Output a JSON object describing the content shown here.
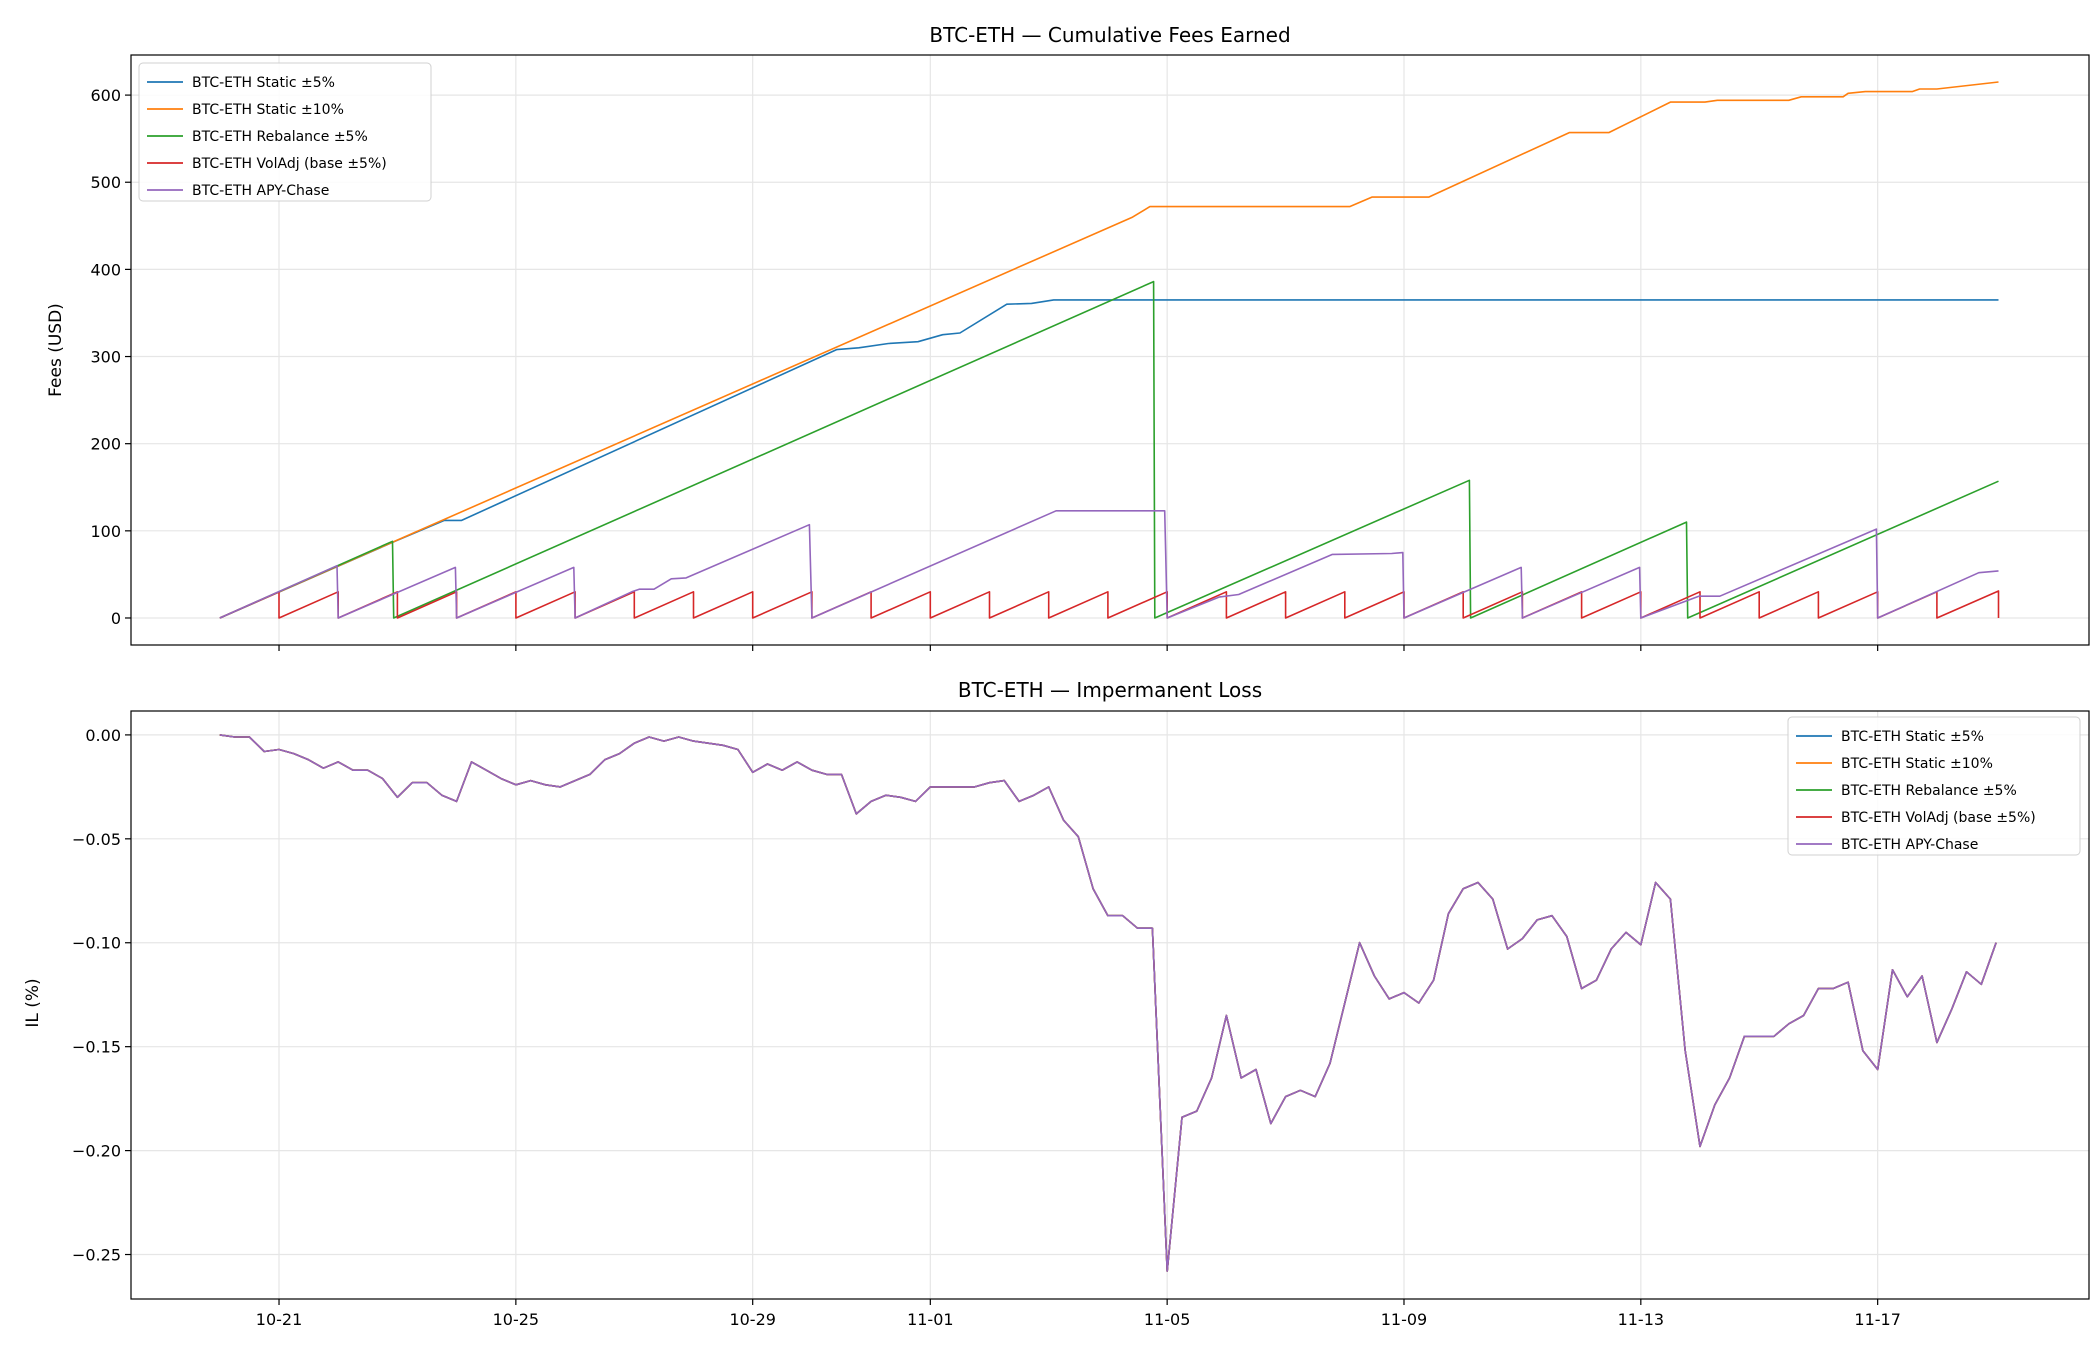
{
  "chart_data": [
    {
      "type": "line",
      "title": "BTC-ETH — Cumulative Fees Earned",
      "xlabel": "",
      "ylabel": "Fees (USD)",
      "xlim": [
        "10-18 12:00",
        "11-20 13:40"
      ],
      "ylim": [
        -31,
        646
      ],
      "xticks": [
        "10-21",
        "10-25",
        "10-29",
        "11-01",
        "11-05",
        "11-09",
        "11-13",
        "11-17"
      ],
      "xtick_labels_shown": false,
      "yticks": [
        0,
        100,
        200,
        300,
        400,
        500,
        600
      ],
      "grid": true,
      "legend": "top-left",
      "series": [
        {
          "name": "BTC-ETH Static ±5%",
          "color": "#1f77b4",
          "points": [
            [
              "10-20 00:00",
              0
            ],
            [
              "10-22 23:00",
              88
            ],
            [
              "10-23 19:00",
              112
            ],
            [
              "10-24 02:00",
              112
            ],
            [
              "10-30 10:00",
              308
            ],
            [
              "10-30 19:00",
              310
            ],
            [
              "10-31 07:00",
              315
            ],
            [
              "10-31 19:00",
              317
            ],
            [
              "11-01 05:00",
              325
            ],
            [
              "11-01 12:00",
              327
            ],
            [
              "11-02 07:00",
              360
            ],
            [
              "11-02 17:00",
              361
            ],
            [
              "11-03 02:00",
              365
            ],
            [
              "11-19 01:00",
              365
            ]
          ]
        },
        {
          "name": "BTC-ETH Static ±10%",
          "color": "#ff7f0e",
          "points": [
            [
              "10-20 00:00",
              0
            ],
            [
              "11-04 10:00",
              460
            ],
            [
              "11-04 17:00",
              472
            ],
            [
              "11-08 02:00",
              472
            ],
            [
              "11-08 11:00",
              483
            ],
            [
              "11-09 10:00",
              483
            ],
            [
              "11-11 19:00",
              557
            ],
            [
              "11-12 11:00",
              557
            ],
            [
              "11-13 12:00",
              592
            ],
            [
              "11-14 02:00",
              592
            ],
            [
              "11-14 07:00",
              594
            ],
            [
              "11-15 12:00",
              594
            ],
            [
              "11-15 17:00",
              598
            ],
            [
              "11-16 10:00",
              598
            ],
            [
              "11-16 12:00",
              602
            ],
            [
              "11-16 19:00",
              604
            ],
            [
              "11-17 14:00",
              604
            ],
            [
              "11-17 17:00",
              607
            ],
            [
              "11-18 00:00",
              607
            ],
            [
              "11-19 01:00",
              615
            ]
          ]
        },
        {
          "name": "BTC-ETH Rebalance ±5%",
          "color": "#2ca02c",
          "points": [
            [
              "10-20 00:00",
              0
            ],
            [
              "10-22 22:00",
              88
            ],
            [
              "10-22 22:30",
              0
            ],
            [
              "11-04 18:30",
              386
            ],
            [
              "11-04 19:00",
              0
            ],
            [
              "11-10 02:30",
              158
            ],
            [
              "11-10 03:00",
              0
            ],
            [
              "11-13 18:30",
              110
            ],
            [
              "11-13 19:00",
              0
            ],
            [
              "11-19 01:00",
              157
            ]
          ]
        },
        {
          "name": "BTC-ETH VolAdj (base ±5%)",
          "color": "#d62728",
          "points": [
            [
              "10-20 00:00",
              0
            ],
            [
              "10-21 00:00",
              30
            ],
            [
              "10-21 00:00",
              0
            ],
            [
              "10-22 00:00",
              30
            ],
            [
              "10-22 00:00",
              0
            ],
            [
              "10-23 00:00",
              30
            ],
            [
              "10-23 00:00",
              0
            ],
            [
              "10-24 00:00",
              30
            ],
            [
              "10-24 00:00",
              0
            ],
            [
              "10-25 00:00",
              30
            ],
            [
              "10-25 00:00",
              0
            ],
            [
              "10-26 00:00",
              30
            ],
            [
              "10-26 00:00",
              0
            ],
            [
              "10-27 00:00",
              30
            ],
            [
              "10-27 00:00",
              0
            ],
            [
              "10-28 00:00",
              30
            ],
            [
              "10-28 00:00",
              0
            ],
            [
              "10-29 00:00",
              30
            ],
            [
              "10-29 00:00",
              0
            ],
            [
              "10-30 00:00",
              30
            ],
            [
              "10-30 00:00",
              0
            ],
            [
              "10-31 00:00",
              30
            ],
            [
              "10-31 00:00",
              0
            ],
            [
              "11-01 00:00",
              30
            ],
            [
              "11-01 00:00",
              0
            ],
            [
              "11-02 00:00",
              30
            ],
            [
              "11-02 00:00",
              0
            ],
            [
              "11-03 00:00",
              30
            ],
            [
              "11-03 00:00",
              0
            ],
            [
              "11-04 00:00",
              30
            ],
            [
              "11-04 00:00",
              0
            ],
            [
              "11-05 00:00",
              30
            ],
            [
              "11-05 00:00",
              0
            ],
            [
              "11-06 00:00",
              30
            ],
            [
              "11-06 00:00",
              0
            ],
            [
              "11-07 00:00",
              30
            ],
            [
              "11-07 00:00",
              0
            ],
            [
              "11-08 00:00",
              30
            ],
            [
              "11-08 00:00",
              0
            ],
            [
              "11-09 00:00",
              30
            ],
            [
              "11-09 00:00",
              0
            ],
            [
              "11-10 00:00",
              30
            ],
            [
              "11-10 00:00",
              0
            ],
            [
              "11-11 00:00",
              30
            ],
            [
              "11-11 00:00",
              0
            ],
            [
              "11-12 00:00",
              30
            ],
            [
              "11-12 00:00",
              0
            ],
            [
              "11-13 00:00",
              30
            ],
            [
              "11-13 00:00",
              0
            ],
            [
              "11-14 00:00",
              30
            ],
            [
              "11-14 00:00",
              0
            ],
            [
              "11-15 00:00",
              30
            ],
            [
              "11-15 00:00",
              0
            ],
            [
              "11-16 00:00",
              30
            ],
            [
              "11-16 00:00",
              0
            ],
            [
              "11-17 00:00",
              30
            ],
            [
              "11-17 00:00",
              0
            ],
            [
              "11-18 00:00",
              30
            ],
            [
              "11-18 00:00",
              0
            ],
            [
              "11-19 01:00",
              31
            ],
            [
              "11-19 01:00",
              0
            ]
          ]
        },
        {
          "name": "BTC-ETH APY-Chase",
          "color": "#9467bd",
          "points": [
            [
              "10-20 00:00",
              0
            ],
            [
              "10-21 23:30",
              60
            ],
            [
              "10-22 00:00",
              0
            ],
            [
              "10-23 23:30",
              58
            ],
            [
              "10-24 00:00",
              0
            ],
            [
              "10-25 23:30",
              58
            ],
            [
              "10-26 00:00",
              0
            ],
            [
              "10-26 23:00",
              30
            ],
            [
              "10-27 02:00",
              33
            ],
            [
              "10-27 08:00",
              33
            ],
            [
              "10-27 15:00",
              45
            ],
            [
              "10-27 21:00",
              46
            ],
            [
              "10-29 23:00",
              107
            ],
            [
              "10-30 00:00",
              0
            ],
            [
              "11-03 03:00",
              123
            ],
            [
              "11-04 23:00",
              123
            ],
            [
              "11-05 00:00",
              0
            ],
            [
              "11-05 21:00",
              24
            ],
            [
              "11-06 05:00",
              27
            ],
            [
              "11-07 19:00",
              73
            ],
            [
              "11-08 19:00",
              74
            ],
            [
              "11-08 23:30",
              75
            ],
            [
              "11-09 00:00",
              0
            ],
            [
              "11-10 23:30",
              58
            ],
            [
              "11-11 00:00",
              0
            ],
            [
              "11-12 23:30",
              58
            ],
            [
              "11-13 00:00",
              0
            ],
            [
              "11-13 23:30",
              25
            ],
            [
              "11-14 08:00",
              25
            ],
            [
              "11-16 23:30",
              102
            ],
            [
              "11-17 00:00",
              0
            ],
            [
              "11-18 17:00",
              52
            ],
            [
              "11-19 01:00",
              54
            ]
          ]
        }
      ]
    },
    {
      "type": "line",
      "title": "BTC-ETH — Impermanent Loss",
      "xlabel": "",
      "ylabel": "IL (%)",
      "xlim": [
        "10-18 12:00",
        "11-20 13:40"
      ],
      "ylim": [
        -0.2714,
        0.0115
      ],
      "xticks": [
        "10-21",
        "10-25",
        "10-29",
        "11-01",
        "11-05",
        "11-09",
        "11-13",
        "11-17"
      ],
      "yticks": [
        "0.00",
        "−0.05",
        "−0.10",
        "−0.15",
        "−0.20",
        "−0.25"
      ],
      "ytick_values": [
        0,
        -0.05,
        -0.1,
        -0.15,
        -0.2,
        -0.25
      ],
      "grid": true,
      "legend": "top-right",
      "series": [
        {
          "name": "BTC-ETH Static ±5%",
          "color": "#1f77b4"
        },
        {
          "name": "BTC-ETH Static ±10%",
          "color": "#ff7f0e"
        },
        {
          "name": "BTC-ETH Rebalance ±5%",
          "color": "#2ca02c"
        },
        {
          "name": "BTC-ETH VolAdj (base ±5%)",
          "color": "#d62728"
        },
        {
          "name": "BTC-ETH APY-Chase",
          "color": "#9467bd"
        }
      ],
      "x": [
        "10-20 00:00",
        "10-20 06:00",
        "10-20 12:00",
        "10-20 18:00",
        "10-21 00:00",
        "10-21 06:00",
        "10-21 12:00",
        "10-21 18:00",
        "10-22 00:00",
        "10-22 06:00",
        "10-22 12:00",
        "10-22 18:00",
        "10-23 00:00",
        "10-23 06:00",
        "10-23 12:00",
        "10-23 18:00",
        "10-24 00:00",
        "10-24 06:00",
        "10-24 12:00",
        "10-24 18:00",
        "10-25 00:00",
        "10-25 06:00",
        "10-25 12:00",
        "10-25 18:00",
        "10-26 00:00",
        "10-26 06:00",
        "10-26 12:00",
        "10-26 18:00",
        "10-27 00:00",
        "10-27 06:00",
        "10-27 12:00",
        "10-27 18:00",
        "10-28 00:00",
        "10-28 06:00",
        "10-28 12:00",
        "10-28 18:00",
        "10-29 00:00",
        "10-29 06:00",
        "10-29 12:00",
        "10-29 18:00",
        "10-30 00:00",
        "10-30 06:00",
        "10-30 12:00",
        "10-30 18:00",
        "10-31 00:00",
        "10-31 06:00",
        "10-31 12:00",
        "10-31 18:00",
        "11-01 00:00",
        "11-01 06:00",
        "11-01 12:00",
        "11-01 18:00",
        "11-02 00:00",
        "11-02 06:00",
        "11-02 12:00",
        "11-02 18:00",
        "11-03 00:00",
        "11-03 06:00",
        "11-03 12:00",
        "11-03 18:00",
        "11-04 00:00",
        "11-04 06:00",
        "11-04 12:00",
        "11-04 18:00",
        "11-05 00:00",
        "11-05 06:00",
        "11-05 12:00",
        "11-05 18:00",
        "11-06 00:00",
        "11-06 06:00",
        "11-06 12:00",
        "11-06 18:00",
        "11-07 00:00",
        "11-07 06:00",
        "11-07 12:00",
        "11-07 18:00",
        "11-08 00:00",
        "11-08 06:00",
        "11-08 12:00",
        "11-08 18:00",
        "11-09 00:00",
        "11-09 06:00",
        "11-09 12:00",
        "11-09 18:00",
        "11-10 00:00",
        "11-10 06:00",
        "11-10 12:00",
        "11-10 18:00",
        "11-11 00:00",
        "11-11 06:00",
        "11-11 12:00",
        "11-11 18:00",
        "11-12 00:00",
        "11-12 06:00",
        "11-12 12:00",
        "11-12 18:00",
        "11-13 00:00",
        "11-13 06:00",
        "11-13 12:00",
        "11-13 18:00",
        "11-14 00:00",
        "11-14 06:00",
        "11-14 12:00",
        "11-14 18:00",
        "11-15 00:00",
        "11-15 06:00",
        "11-15 12:00",
        "11-15 18:00",
        "11-16 00:00",
        "11-16 06:00",
        "11-16 12:00",
        "11-16 18:00",
        "11-17 00:00",
        "11-17 06:00",
        "11-17 12:00",
        "11-17 18:00",
        "11-18 00:00",
        "11-18 06:00",
        "11-18 12:00",
        "11-18 18:00",
        "11-19 00:00"
      ],
      "y_all_series": [
        0.0,
        -0.001,
        -0.001,
        -0.008,
        -0.007,
        -0.009,
        -0.012,
        -0.016,
        -0.013,
        -0.017,
        -0.017,
        -0.021,
        -0.03,
        -0.023,
        -0.023,
        -0.029,
        -0.032,
        -0.013,
        -0.017,
        -0.021,
        -0.024,
        -0.022,
        -0.024,
        -0.025,
        -0.022,
        -0.019,
        -0.012,
        -0.009,
        -0.004,
        -0.001,
        -0.003,
        -0.001,
        -0.003,
        -0.004,
        -0.005,
        -0.007,
        -0.018,
        -0.014,
        -0.017,
        -0.013,
        -0.017,
        -0.019,
        -0.019,
        -0.038,
        -0.032,
        -0.029,
        -0.03,
        -0.032,
        -0.025,
        -0.025,
        -0.025,
        -0.025,
        -0.023,
        -0.022,
        -0.032,
        -0.029,
        -0.025,
        -0.041,
        -0.049,
        -0.074,
        -0.087,
        -0.087,
        -0.093,
        -0.093,
        -0.258,
        -0.184,
        -0.181,
        -0.165,
        -0.135,
        -0.165,
        -0.161,
        -0.187,
        -0.174,
        -0.171,
        -0.174,
        -0.158,
        -0.129,
        -0.1,
        -0.116,
        -0.127,
        -0.124,
        -0.129,
        -0.118,
        -0.086,
        -0.074,
        -0.071,
        -0.079,
        -0.103,
        -0.098,
        -0.089,
        -0.087,
        -0.097,
        -0.122,
        -0.118,
        -0.103,
        -0.095,
        -0.101,
        -0.071,
        -0.079,
        -0.152,
        -0.198,
        -0.178,
        -0.165,
        -0.145,
        -0.145,
        -0.145,
        -0.139,
        -0.135,
        -0.122,
        -0.122,
        -0.119,
        -0.152,
        -0.161,
        -0.113,
        -0.126,
        -0.116,
        -0.148,
        -0.132,
        -0.114,
        -0.12,
        -0.1
      ]
    }
  ]
}
